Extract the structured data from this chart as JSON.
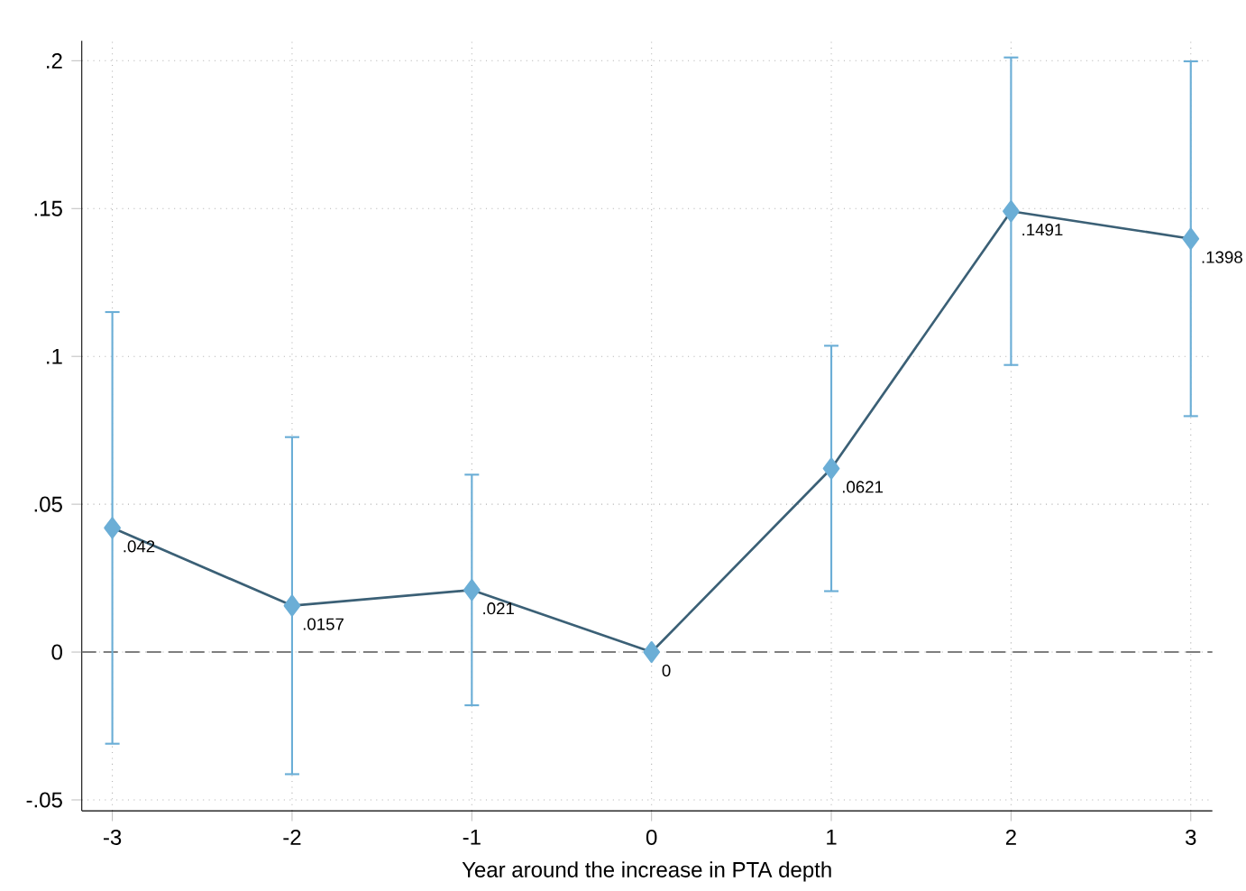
{
  "chart_data": {
    "type": "line",
    "xlabel": "Year around the increase in PTA depth",
    "x": [
      -3,
      -2,
      -1,
      0,
      1,
      2,
      3
    ],
    "series": [
      {
        "color": "#6baed6",
        "values": [
          0.042,
          0.0157,
          0.021,
          0,
          0.0621,
          0.1491,
          0.1398
        ],
        "errors": [
          0.073,
          0.057,
          0.039,
          null,
          0.0415,
          0.052,
          0.06
        ],
        "value_labels": [
          ".042",
          ".0157",
          ".021",
          "0",
          ".0621",
          ".1491",
          ".1398"
        ]
      }
    ],
    "marker": "diamond",
    "line_style": "solid",
    "grid": true,
    "xlim": [
      -3.17,
      3.12
    ],
    "ylim": [
      -0.0537,
      0.2067
    ],
    "xticks": [
      -3,
      -2,
      -1,
      0,
      1,
      2,
      3
    ],
    "yticks": [
      {
        "value": -0.05,
        "label": "-.05"
      },
      0,
      {
        "value": 0.05,
        "label": ".05"
      },
      {
        "value": 0.1,
        "label": ".1"
      },
      {
        "value": 0.15,
        "label": ".15"
      },
      {
        "value": 0.2,
        "label": ".2"
      }
    ],
    "ref_lines": [
      {
        "axis": "y",
        "value": 0,
        "color": "#7f7f7f",
        "line_style": "dashed"
      }
    ]
  }
}
